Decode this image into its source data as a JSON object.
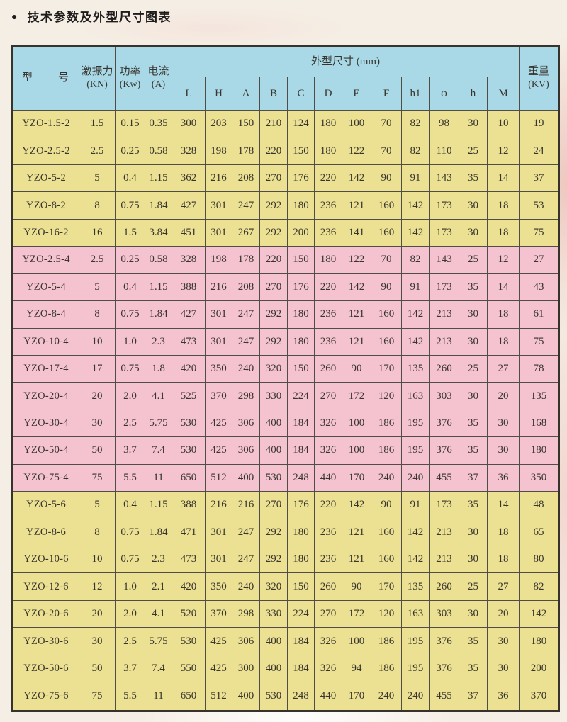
{
  "page": {
    "bullet": "●",
    "title": "技术参数及外型尺寸图表"
  },
  "colors": {
    "page-bg": "#f5eee4",
    "header-bg": "#a9d8e6",
    "row-yellow": "#ece092",
    "row-pink": "#f5c3cf",
    "grid-line": "#4f4d45",
    "ink": "#37352e"
  },
  "table": {
    "header": {
      "model": "型　　号",
      "force_label": "激振力",
      "force_unit": "(KN)",
      "power_label": "功率",
      "power_unit": "(Kw)",
      "current_label": "电流",
      "current_unit": "(A)",
      "dims": "外型尺寸 (mm)",
      "dim_cols": [
        "L",
        "H",
        "A",
        "B",
        "C",
        "D",
        "E",
        "F",
        "h1",
        "φ",
        "h",
        "M"
      ],
      "weight_label": "重量",
      "weight_unit": "(KV)"
    },
    "rows": [
      {
        "group": "yellow",
        "cells": [
          "YZO-1.5-2",
          "1.5",
          "0.15",
          "0.35",
          "300",
          "203",
          "150",
          "210",
          "124",
          "180",
          "100",
          "70",
          "82",
          "98",
          "30",
          "10",
          "19"
        ]
      },
      {
        "group": "yellow",
        "cells": [
          "YZO-2.5-2",
          "2.5",
          "0.25",
          "0.58",
          "328",
          "198",
          "178",
          "220",
          "150",
          "180",
          "122",
          "70",
          "82",
          "110",
          "25",
          "12",
          "24"
        ]
      },
      {
        "group": "yellow",
        "cells": [
          "YZO-5-2",
          "5",
          "0.4",
          "1.15",
          "362",
          "216",
          "208",
          "270",
          "176",
          "220",
          "142",
          "90",
          "91",
          "143",
          "35",
          "14",
          "37"
        ]
      },
      {
        "group": "yellow",
        "cells": [
          "YZO-8-2",
          "8",
          "0.75",
          "1.84",
          "427",
          "301",
          "247",
          "292",
          "180",
          "236",
          "121",
          "160",
          "142",
          "173",
          "30",
          "18",
          "53"
        ]
      },
      {
        "group": "yellow",
        "cells": [
          "YZO-16-2",
          "16",
          "1.5",
          "3.84",
          "451",
          "301",
          "267",
          "292",
          "200",
          "236",
          "141",
          "160",
          "142",
          "173",
          "30",
          "18",
          "75"
        ]
      },
      {
        "group": "pink",
        "cells": [
          "YZO-2.5-4",
          "2.5",
          "0.25",
          "0.58",
          "328",
          "198",
          "178",
          "220",
          "150",
          "180",
          "122",
          "70",
          "82",
          "143",
          "25",
          "12",
          "27"
        ]
      },
      {
        "group": "pink",
        "cells": [
          "YZO-5-4",
          "5",
          "0.4",
          "1.15",
          "388",
          "216",
          "208",
          "270",
          "176",
          "220",
          "142",
          "90",
          "91",
          "173",
          "35",
          "14",
          "43"
        ]
      },
      {
        "group": "pink",
        "cells": [
          "YZO-8-4",
          "8",
          "0.75",
          "1.84",
          "427",
          "301",
          "247",
          "292",
          "180",
          "236",
          "121",
          "160",
          "142",
          "213",
          "30",
          "18",
          "61"
        ]
      },
      {
        "group": "pink",
        "cells": [
          "YZO-10-4",
          "10",
          "1.0",
          "2.3",
          "473",
          "301",
          "247",
          "292",
          "180",
          "236",
          "121",
          "160",
          "142",
          "213",
          "30",
          "18",
          "75"
        ]
      },
      {
        "group": "pink",
        "cells": [
          "YZO-17-4",
          "17",
          "0.75",
          "1.8",
          "420",
          "350",
          "240",
          "320",
          "150",
          "260",
          "90",
          "170",
          "135",
          "260",
          "25",
          "27",
          "78"
        ]
      },
      {
        "group": "pink",
        "cells": [
          "YZO-20-4",
          "20",
          "2.0",
          "4.1",
          "525",
          "370",
          "298",
          "330",
          "224",
          "270",
          "172",
          "120",
          "163",
          "303",
          "30",
          "20",
          "135"
        ]
      },
      {
        "group": "pink",
        "cells": [
          "YZO-30-4",
          "30",
          "2.5",
          "5.75",
          "530",
          "425",
          "306",
          "400",
          "184",
          "326",
          "100",
          "186",
          "195",
          "376",
          "35",
          "30",
          "168"
        ]
      },
      {
        "group": "pink",
        "cells": [
          "YZO-50-4",
          "50",
          "3.7",
          "7.4",
          "530",
          "425",
          "306",
          "400",
          "184",
          "326",
          "100",
          "186",
          "195",
          "376",
          "35",
          "30",
          "180"
        ]
      },
      {
        "group": "pink",
        "cells": [
          "YZO-75-4",
          "75",
          "5.5",
          "11",
          "650",
          "512",
          "400",
          "530",
          "248",
          "440",
          "170",
          "240",
          "240",
          "455",
          "37",
          "36",
          "350"
        ]
      },
      {
        "group": "yellow",
        "cells": [
          "YZO-5-6",
          "5",
          "0.4",
          "1.15",
          "388",
          "216",
          "216",
          "270",
          "176",
          "220",
          "142",
          "90",
          "91",
          "173",
          "35",
          "14",
          "48"
        ]
      },
      {
        "group": "yellow",
        "cells": [
          "YZO-8-6",
          "8",
          "0.75",
          "1.84",
          "471",
          "301",
          "247",
          "292",
          "180",
          "236",
          "121",
          "160",
          "142",
          "213",
          "30",
          "18",
          "65"
        ]
      },
      {
        "group": "yellow",
        "cells": [
          "YZO-10-6",
          "10",
          "0.75",
          "2.3",
          "473",
          "301",
          "247",
          "292",
          "180",
          "236",
          "121",
          "160",
          "142",
          "213",
          "30",
          "18",
          "80"
        ]
      },
      {
        "group": "yellow",
        "cells": [
          "YZO-12-6",
          "12",
          "1.0",
          "2.1",
          "420",
          "350",
          "240",
          "320",
          "150",
          "260",
          "90",
          "170",
          "135",
          "260",
          "25",
          "27",
          "82"
        ]
      },
      {
        "group": "yellow",
        "cells": [
          "YZO-20-6",
          "20",
          "2.0",
          "4.1",
          "520",
          "370",
          "298",
          "330",
          "224",
          "270",
          "172",
          "120",
          "163",
          "303",
          "30",
          "20",
          "142"
        ]
      },
      {
        "group": "yellow",
        "cells": [
          "YZO-30-6",
          "30",
          "2.5",
          "5.75",
          "530",
          "425",
          "306",
          "400",
          "184",
          "326",
          "100",
          "186",
          "195",
          "376",
          "35",
          "30",
          "180"
        ]
      },
      {
        "group": "yellow",
        "cells": [
          "YZO-50-6",
          "50",
          "3.7",
          "7.4",
          "550",
          "425",
          "300",
          "400",
          "184",
          "326",
          "94",
          "186",
          "195",
          "376",
          "35",
          "30",
          "200"
        ]
      },
      {
        "group": "yellow",
        "cells": [
          "YZO-75-6",
          "75",
          "5.5",
          "11",
          "650",
          "512",
          "400",
          "530",
          "248",
          "440",
          "170",
          "240",
          "240",
          "455",
          "37",
          "36",
          "370"
        ]
      }
    ]
  }
}
